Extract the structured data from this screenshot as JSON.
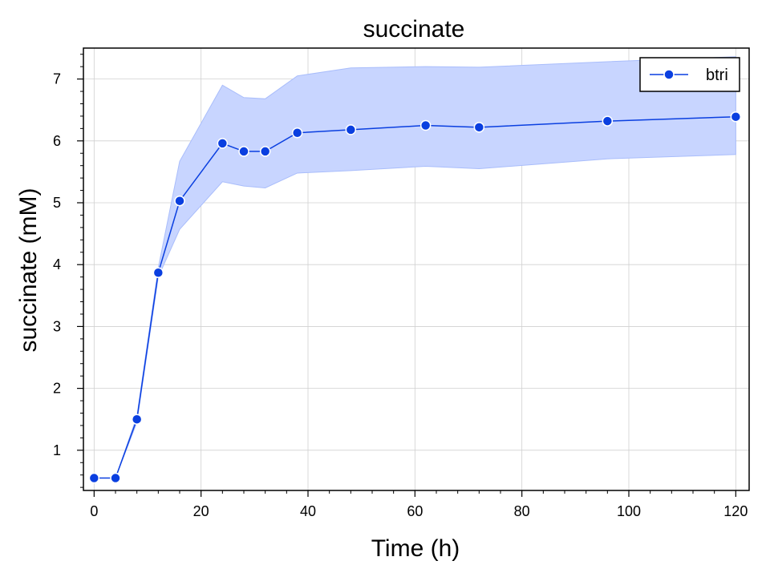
{
  "chart_data": {
    "type": "line",
    "title": "succinate",
    "xlabel": "Time (h)",
    "ylabel": "succinate (mM)",
    "xlim": [
      -2,
      122.5
    ],
    "ylim": [
      0.35,
      7.5
    ],
    "xticks": [
      0,
      20,
      40,
      60,
      80,
      100,
      120
    ],
    "yticks": [
      1,
      2,
      3,
      4,
      5,
      6,
      7
    ],
    "grid": true,
    "legend_position": "top-right",
    "series": [
      {
        "name": "btri",
        "color": "#0a3fe0",
        "band_color": "#c8d5ff",
        "x": [
          0,
          4,
          8,
          12,
          16,
          24,
          28,
          32,
          38,
          48,
          62,
          72,
          96,
          120
        ],
        "y": [
          0.55,
          0.55,
          1.5,
          3.87,
          5.03,
          5.96,
          5.83,
          5.83,
          6.13,
          6.18,
          6.25,
          6.22,
          6.32,
          6.39
        ],
        "upper": [
          0.55,
          0.55,
          1.55,
          3.95,
          5.67,
          6.9,
          6.7,
          6.68,
          7.05,
          7.18,
          7.2,
          7.19,
          7.28,
          7.36
        ],
        "lower": [
          0.55,
          0.55,
          1.45,
          3.8,
          4.57,
          5.34,
          5.27,
          5.24,
          5.48,
          5.52,
          5.59,
          5.55,
          5.71,
          5.78
        ]
      }
    ]
  }
}
